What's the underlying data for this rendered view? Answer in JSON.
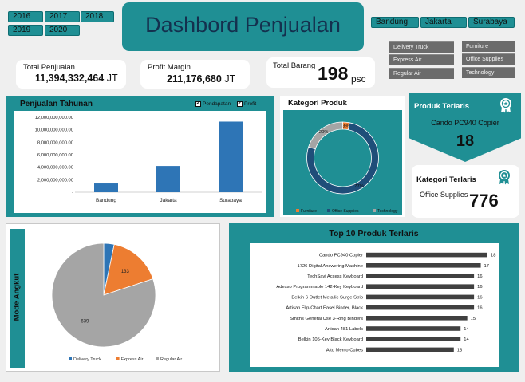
{
  "filters": {
    "years": [
      "2016",
      "2017",
      "2018",
      "2019",
      "2020"
    ],
    "cities": [
      "Bandung",
      "Jakarta",
      "Surabaya"
    ],
    "shipping_modes": [
      "Delivery Truck",
      "Express Air",
      "Regular Air"
    ],
    "categories": [
      "Furniture",
      "Office Supplies",
      "Technology"
    ]
  },
  "header": {
    "title": "Dashbord Penjualan"
  },
  "kpis": {
    "total_penjualan": {
      "label": "Total Penjualan",
      "value": "11,394,332,464",
      "unit": "JT"
    },
    "profit_margin": {
      "label": "Profit Margin",
      "value": "211,176,680",
      "unit": "JT"
    },
    "total_barang": {
      "label": "Total Barang",
      "value": "198",
      "unit": "psc"
    }
  },
  "produk_terlaris": {
    "label": "Produk Terlaris",
    "name": "Cando PC940 Copier",
    "value": "18",
    "icon": "award-badge-icon"
  },
  "kategori_terlaris": {
    "label": "Kategori Terlaris",
    "name": "Office Supplies",
    "value": "776",
    "icon": "award-badge-icon"
  },
  "colors": {
    "teal": "#1f8f94",
    "bar_blue": "#2e75b6",
    "orange": "#ed7d31",
    "gray": "#a5a5a5",
    "navy": "#1f4e79",
    "dark_bar": "#404040"
  },
  "chart_data": [
    {
      "id": "penjualan_tahunan",
      "type": "bar",
      "title": "Penjualan Tahunan",
      "legend": [
        "Pendapatan",
        "Profit"
      ],
      "categories": [
        "Bandung",
        "Jakarta",
        "Surabaya"
      ],
      "values": [
        1400000000,
        4200000000,
        11300000000
      ],
      "yticks": [
        "12,000,000,000.00",
        "10,000,000,000.00",
        "8,000,000,000.00",
        "6,000,000,000.00",
        "4,000,000,000.00",
        "2,000,000,000.00",
        "-"
      ],
      "ylim": [
        0,
        12000000000
      ]
    },
    {
      "id": "kategori_produk",
      "type": "pie",
      "title": "Kategori Produk",
      "categories": [
        "Furniture",
        "Office Supplies",
        "Technology"
      ],
      "values": [
        3,
        77,
        20
      ],
      "labels": [
        "3%",
        "77%",
        "20%"
      ]
    },
    {
      "id": "mode_angkut",
      "type": "pie",
      "title": "Mode Angkut",
      "categories": [
        "Delivery Truck",
        "Express Air",
        "Regular Air"
      ],
      "values": [
        26,
        133,
        639
      ],
      "labels": [
        "",
        "133",
        "639"
      ]
    },
    {
      "id": "top10",
      "type": "bar",
      "title": "Top 10 Produk Terlaris",
      "categories": [
        "Cando PC940 Copier",
        "1726 Digital Answering Machine",
        "TechSavi Access Keyboard",
        "Adesso Programmable 142-Key Keyboard",
        "Belkin 6 Outlet Metallic Surge Strip",
        "Artisan Flip-Chart Easel Binder, Black",
        "Smiths General Use 3-Ring Binders",
        "Artisan 481 Labels",
        "Belkin 105-Key Black Keyboard",
        "Alto Memo Cubes"
      ],
      "values": [
        18,
        17,
        16,
        16,
        16,
        16,
        15,
        14,
        14,
        13
      ],
      "xlim": [
        0,
        18
      ]
    }
  ]
}
